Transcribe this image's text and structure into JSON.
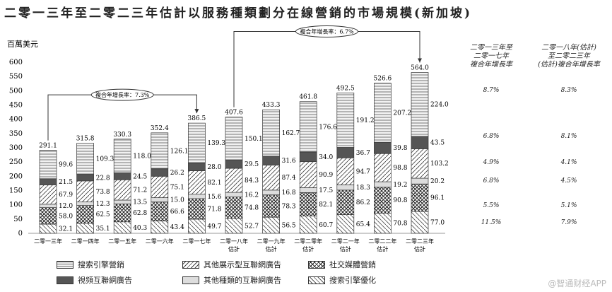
{
  "title": "二零一三年至二零二三年估計以服務種類劃分在線營銷的市場規模(新加坡)",
  "chart_data": {
    "type": "bar",
    "stacked": true,
    "ylabel": "百萬美元",
    "ylim": [
      0,
      600
    ],
    "yticks": [
      0,
      50,
      100,
      150,
      200,
      250,
      300,
      350,
      400,
      450,
      500,
      550,
      600
    ],
    "categories": [
      "二零一三年",
      "二零一四年",
      "二零一五年",
      "二零一六年",
      "二零一七年",
      "二零一八年\n估計",
      "二零一九年\n估計",
      "二零二零年\n估計",
      "二零二一年\n估計",
      "二零二二年\n估計",
      "二零二三年\n估計"
    ],
    "totals": [
      291.1,
      315.8,
      330.3,
      352.4,
      386.5,
      407.6,
      433.3,
      461.8,
      492.5,
      526.6,
      564.0
    ],
    "series": [
      {
        "name": "搜索引擎優化",
        "values": [
          32.1,
          35.1,
          40.3,
          43.4,
          49.7,
          52.7,
          56.5,
          60.7,
          65.4,
          70.8,
          77.0
        ]
      },
      {
        "name": "社交媒體營銷",
        "values": [
          58.0,
          62.5,
          62.8,
          66.6,
          71.8,
          74.8,
          78.3,
          82.1,
          86.2,
          90.8,
          96.1
        ]
      },
      {
        "name": "其他種類的互聯網廣告",
        "values": [
          12.0,
          12.3,
          13.5,
          15.0,
          15.6,
          16.2,
          16.8,
          17.5,
          18.3,
          19.2,
          20.2
        ]
      },
      {
        "name": "其他展示型互聯網廣告",
        "values": [
          67.9,
          73.8,
          71.2,
          75.1,
          82.1,
          84.3,
          87.4,
          90.9,
          94.7,
          98.8,
          103.2
        ]
      },
      {
        "name": "視頻互聯網廣告",
        "values": [
          21.5,
          22.8,
          24.5,
          26.2,
          28.0,
          29.5,
          31.6,
          34.0,
          36.7,
          39.8,
          43.5
        ]
      },
      {
        "name": "搜索引擎營銷",
        "values": [
          99.6,
          109.3,
          118.0,
          126.1,
          139.3,
          150.1,
          162.7,
          176.6,
          191.2,
          207.2,
          224.0
        ]
      }
    ],
    "cagr_annotations": [
      {
        "label": "複合年增長率：7.3%",
        "from": 0,
        "to": 4
      },
      {
        "label": "複合年增長率：6.7%",
        "from": 5,
        "to": 10
      }
    ],
    "cagr_table": {
      "headers": [
        "二零一三年至\n二零一七年\n複合年增長率",
        "二零一八年(估計)\n至二零二三年\n(估計)複合年增長率"
      ],
      "rows": [
        {
          "series": "搜索引擎營銷",
          "values": [
            "8.7%",
            "8.3%"
          ]
        },
        {
          "series": "視頻互聯網廣告",
          "values": [
            "6.8%",
            "8.1%"
          ]
        },
        {
          "series": "其他展示型互聯網廣告",
          "values": [
            "4.9%",
            "4.1%"
          ]
        },
        {
          "series": "其他種類的互聯網廣告",
          "values": [
            "6.8%",
            "4.5%"
          ]
        },
        {
          "series": "社交媒體營銷",
          "values": [
            "5.5%",
            "5.1%"
          ]
        },
        {
          "series": "搜索引擎優化",
          "values": [
            "11.5%",
            "7.9%"
          ]
        }
      ]
    }
  },
  "legend": [
    {
      "name": "搜索引擎營銷",
      "pattern": "hlines"
    },
    {
      "name": "其他展示型互聯網廣告",
      "pattern": "diag"
    },
    {
      "name": "社交媒體營銷",
      "pattern": "cross"
    },
    {
      "name": "視頻互聯網廣告",
      "pattern": "dark"
    },
    {
      "name": "其他種類的互聯網廣告",
      "pattern": "light"
    },
    {
      "name": "搜索引擎優化",
      "pattern": "diag2"
    }
  ],
  "watermark": "@智通财经APP"
}
